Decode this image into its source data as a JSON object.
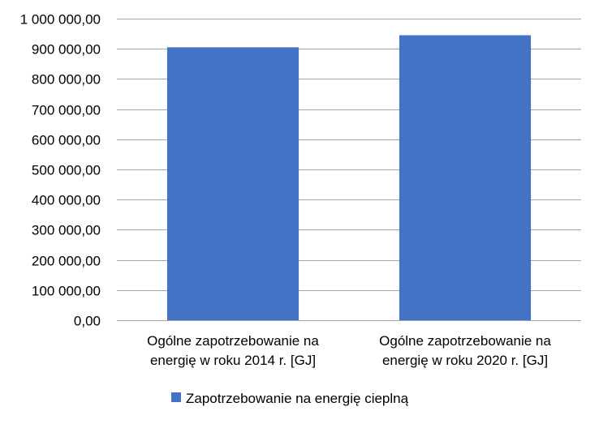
{
  "chart_data": {
    "type": "bar",
    "categories": [
      [
        "Ogólne zapotrzebowanie na",
        "energię w roku 2014 r. [GJ]"
      ],
      [
        "Ogólne zapotrzebowanie na",
        "energię w roku 2020 r. [GJ]"
      ]
    ],
    "series": [
      {
        "name": "Zapotrzebowanie na energię cieplną",
        "values": [
          905000,
          945000
        ],
        "color": "#4472C4"
      }
    ],
    "ylim": [
      0,
      1000000
    ],
    "ytick_step": 100000,
    "ytick_labels": [
      "0,00",
      "100 000,00",
      "200 000,00",
      "300 000,00",
      "400 000,00",
      "500 000,00",
      "600 000,00",
      "700 000,00",
      "800 000,00",
      "900 000,00",
      "1 000 000,00"
    ],
    "grid": true,
    "legend_position": "bottom",
    "gridline_color": "#A6A6A6"
  }
}
